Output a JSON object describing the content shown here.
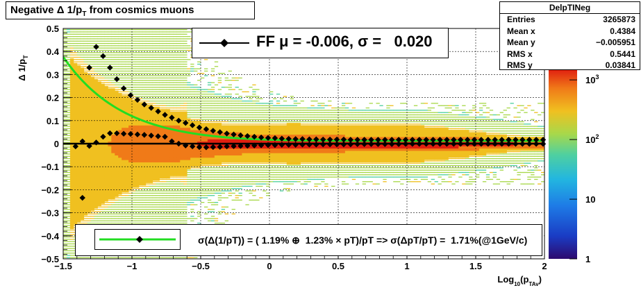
{
  "title": "Negative Δ 1/p_T  from cosmics muons",
  "title_main": "Negative Δ 1/p",
  "title_sub": "T",
  "title_tail": "  from cosmics muons",
  "stats": {
    "name": "DelpTINeg",
    "rows": [
      {
        "label": "Entries",
        "value": "3265873"
      },
      {
        "label": "Mean x",
        "value": "0.4384"
      },
      {
        "label": "Mean y",
        "value": "−0.005951"
      },
      {
        "label": "RMS x",
        "value": "0.5441"
      },
      {
        "label": "RMS y",
        "value": "0.03841"
      }
    ]
  },
  "fit_legend": "FF μ = -0.006, σ =   0.020",
  "res_legend": "σ(Δ(1/pT)) = ( 1.19% ⊕  1.23% × pT)/pT => σ(ΔpT/pT) =  1.71%(@1GeV/c)",
  "colors": {
    "fit_curve": "#22dd22",
    "markers": "#000000",
    "palette": [
      "#2d0a6e",
      "#1a3cc4",
      "#1e7be6",
      "#22b6e0",
      "#4fd0a0",
      "#a8d84a",
      "#f0c020",
      "#f07a18",
      "#e02010"
    ]
  },
  "chart_data": {
    "type": "heatmap",
    "title": "Negative Δ 1/pT  from cosmics muons",
    "xlabel": "Log10(pTAv)",
    "xlabel_main": "Log",
    "xlabel_sub1": "10",
    "xlabel_mid": "(p",
    "xlabel_sub2": "TAv",
    "xlabel_tail": ")",
    "ylabel": "Δ 1/pT",
    "ylabel_main": "Δ 1/p",
    "ylabel_sub": "T",
    "xlim": [
      -1.5,
      2.0
    ],
    "ylim": [
      -0.5,
      0.5
    ],
    "x_ticks": [
      -1.5,
      -1,
      -0.5,
      0,
      0.5,
      1,
      1.5,
      2
    ],
    "x_tick_labels": [
      "−1.5",
      "−1",
      "−0.5",
      "0",
      "0.5",
      "1",
      "1.5",
      "2"
    ],
    "y_ticks": [
      -0.5,
      -0.4,
      -0.3,
      -0.2,
      -0.1,
      0,
      0.1,
      0.2,
      0.3,
      0.4,
      0.5
    ],
    "y_tick_labels": [
      "−0.5",
      "−0.4",
      "−0.3",
      "−0.2",
      "−0.1",
      "0",
      "0.1",
      "0.2",
      "0.3",
      "0.4",
      "0.5"
    ],
    "z_scale": "log",
    "z_ticks": [
      1,
      10,
      100,
      1000
    ],
    "z_tick_labels": [
      "1",
      "10",
      "10^2",
      "10^3"
    ],
    "grid": true,
    "sigma_curve": {
      "a_percent": 1.19,
      "b_percent": 1.23
    },
    "mean_points": {
      "x": [
        -1.41,
        -1.36,
        -1.31,
        -1.26,
        -1.21,
        -1.16,
        -1.11,
        -1.06,
        -1.01,
        -0.96,
        -0.91,
        -0.86,
        -0.81,
        -0.76,
        -0.71,
        -0.66,
        -0.61,
        -0.56,
        -0.51,
        -0.46,
        -0.41,
        -0.36,
        -0.31,
        -0.26,
        -0.21,
        -0.16,
        -0.11,
        -0.06,
        -0.01,
        0.04,
        0.09,
        0.14,
        0.19,
        0.24,
        0.29,
        0.34,
        0.39,
        0.44,
        0.49,
        0.54,
        0.59,
        0.64,
        0.69,
        0.74,
        0.79,
        0.84,
        0.89,
        0.94,
        0.99,
        1.04,
        1.09,
        1.14,
        1.19,
        1.24,
        1.29,
        1.34,
        1.39,
        1.44,
        1.49,
        1.54,
        1.59,
        1.64,
        1.69,
        1.74,
        1.79,
        1.84,
        1.89,
        1.94,
        1.99
      ],
      "y": [
        -0.012,
        0.01,
        -0.01,
        0.005,
        0.03,
        0.045,
        0.045,
        0.043,
        0.042,
        0.04,
        0.038,
        0.035,
        0.032,
        0.03,
        0.01,
        0.0,
        -0.008,
        -0.012,
        -0.015,
        -0.016,
        -0.015,
        -0.014,
        -0.012,
        -0.011,
        -0.01,
        -0.009,
        -0.008,
        -0.007,
        -0.006,
        -0.006,
        -0.005,
        -0.005,
        -0.005,
        -0.004,
        -0.004,
        -0.004,
        -0.003,
        -0.003,
        -0.003,
        -0.003,
        -0.003,
        -0.002,
        -0.002,
        -0.002,
        -0.002,
        -0.002,
        -0.002,
        -0.002,
        -0.001,
        -0.001,
        -0.001,
        -0.001,
        -0.001,
        -0.001,
        -0.001,
        -0.001,
        -0.001,
        -0.001,
        -0.001,
        -0.001,
        -0.001,
        -0.001,
        -0.001,
        -0.001,
        -0.001,
        -0.001,
        -0.001,
        -0.001,
        -0.001
      ]
    },
    "sigma_points": {
      "x": [
        -1.36,
        -1.31,
        -1.26,
        -1.21,
        -1.16,
        -1.11,
        -1.06,
        -1.01,
        -0.96,
        -0.91,
        -0.86,
        -0.81,
        -0.76,
        -0.71,
        -0.66,
        -0.61,
        -0.56,
        -0.51,
        -0.46,
        -0.41,
        -0.36,
        -0.31,
        -0.26,
        -0.21,
        -0.16,
        -0.11,
        -0.06,
        -0.01,
        0.04,
        0.09,
        0.14,
        0.19,
        0.24,
        0.29,
        0.34,
        0.39,
        0.44,
        0.49,
        0.54,
        0.59,
        0.64,
        0.69,
        0.74,
        0.79,
        0.84,
        0.89,
        0.94,
        0.99,
        1.04,
        1.09,
        1.14,
        1.19,
        1.24,
        1.29,
        1.34,
        1.39,
        1.44,
        1.49,
        1.54,
        1.59,
        1.64,
        1.69,
        1.74,
        1.79,
        1.84,
        1.89,
        1.94,
        1.99
      ],
      "y": [
        -0.235,
        0.33,
        0.42,
        0.38,
        0.33,
        0.28,
        0.24,
        0.21,
        0.19,
        0.17,
        0.155,
        0.14,
        0.125,
        0.113,
        0.1,
        0.09,
        0.08,
        0.07,
        0.063,
        0.056,
        0.05,
        0.044,
        0.04,
        0.036,
        0.033,
        0.03,
        0.027,
        0.025,
        0.024,
        0.022,
        0.021,
        0.02,
        0.02,
        0.019,
        0.019,
        0.018,
        0.018,
        0.018,
        0.018,
        0.017,
        0.017,
        0.017,
        0.017,
        0.017,
        0.017,
        0.017,
        0.017,
        0.017,
        0.017,
        0.017,
        0.017,
        0.017,
        0.017,
        0.017,
        0.017,
        0.017,
        0.017,
        0.017,
        0.017,
        0.017,
        0.017,
        0.017,
        0.017,
        0.017,
        0.017,
        0.017,
        0.017,
        0.017
      ]
    }
  }
}
